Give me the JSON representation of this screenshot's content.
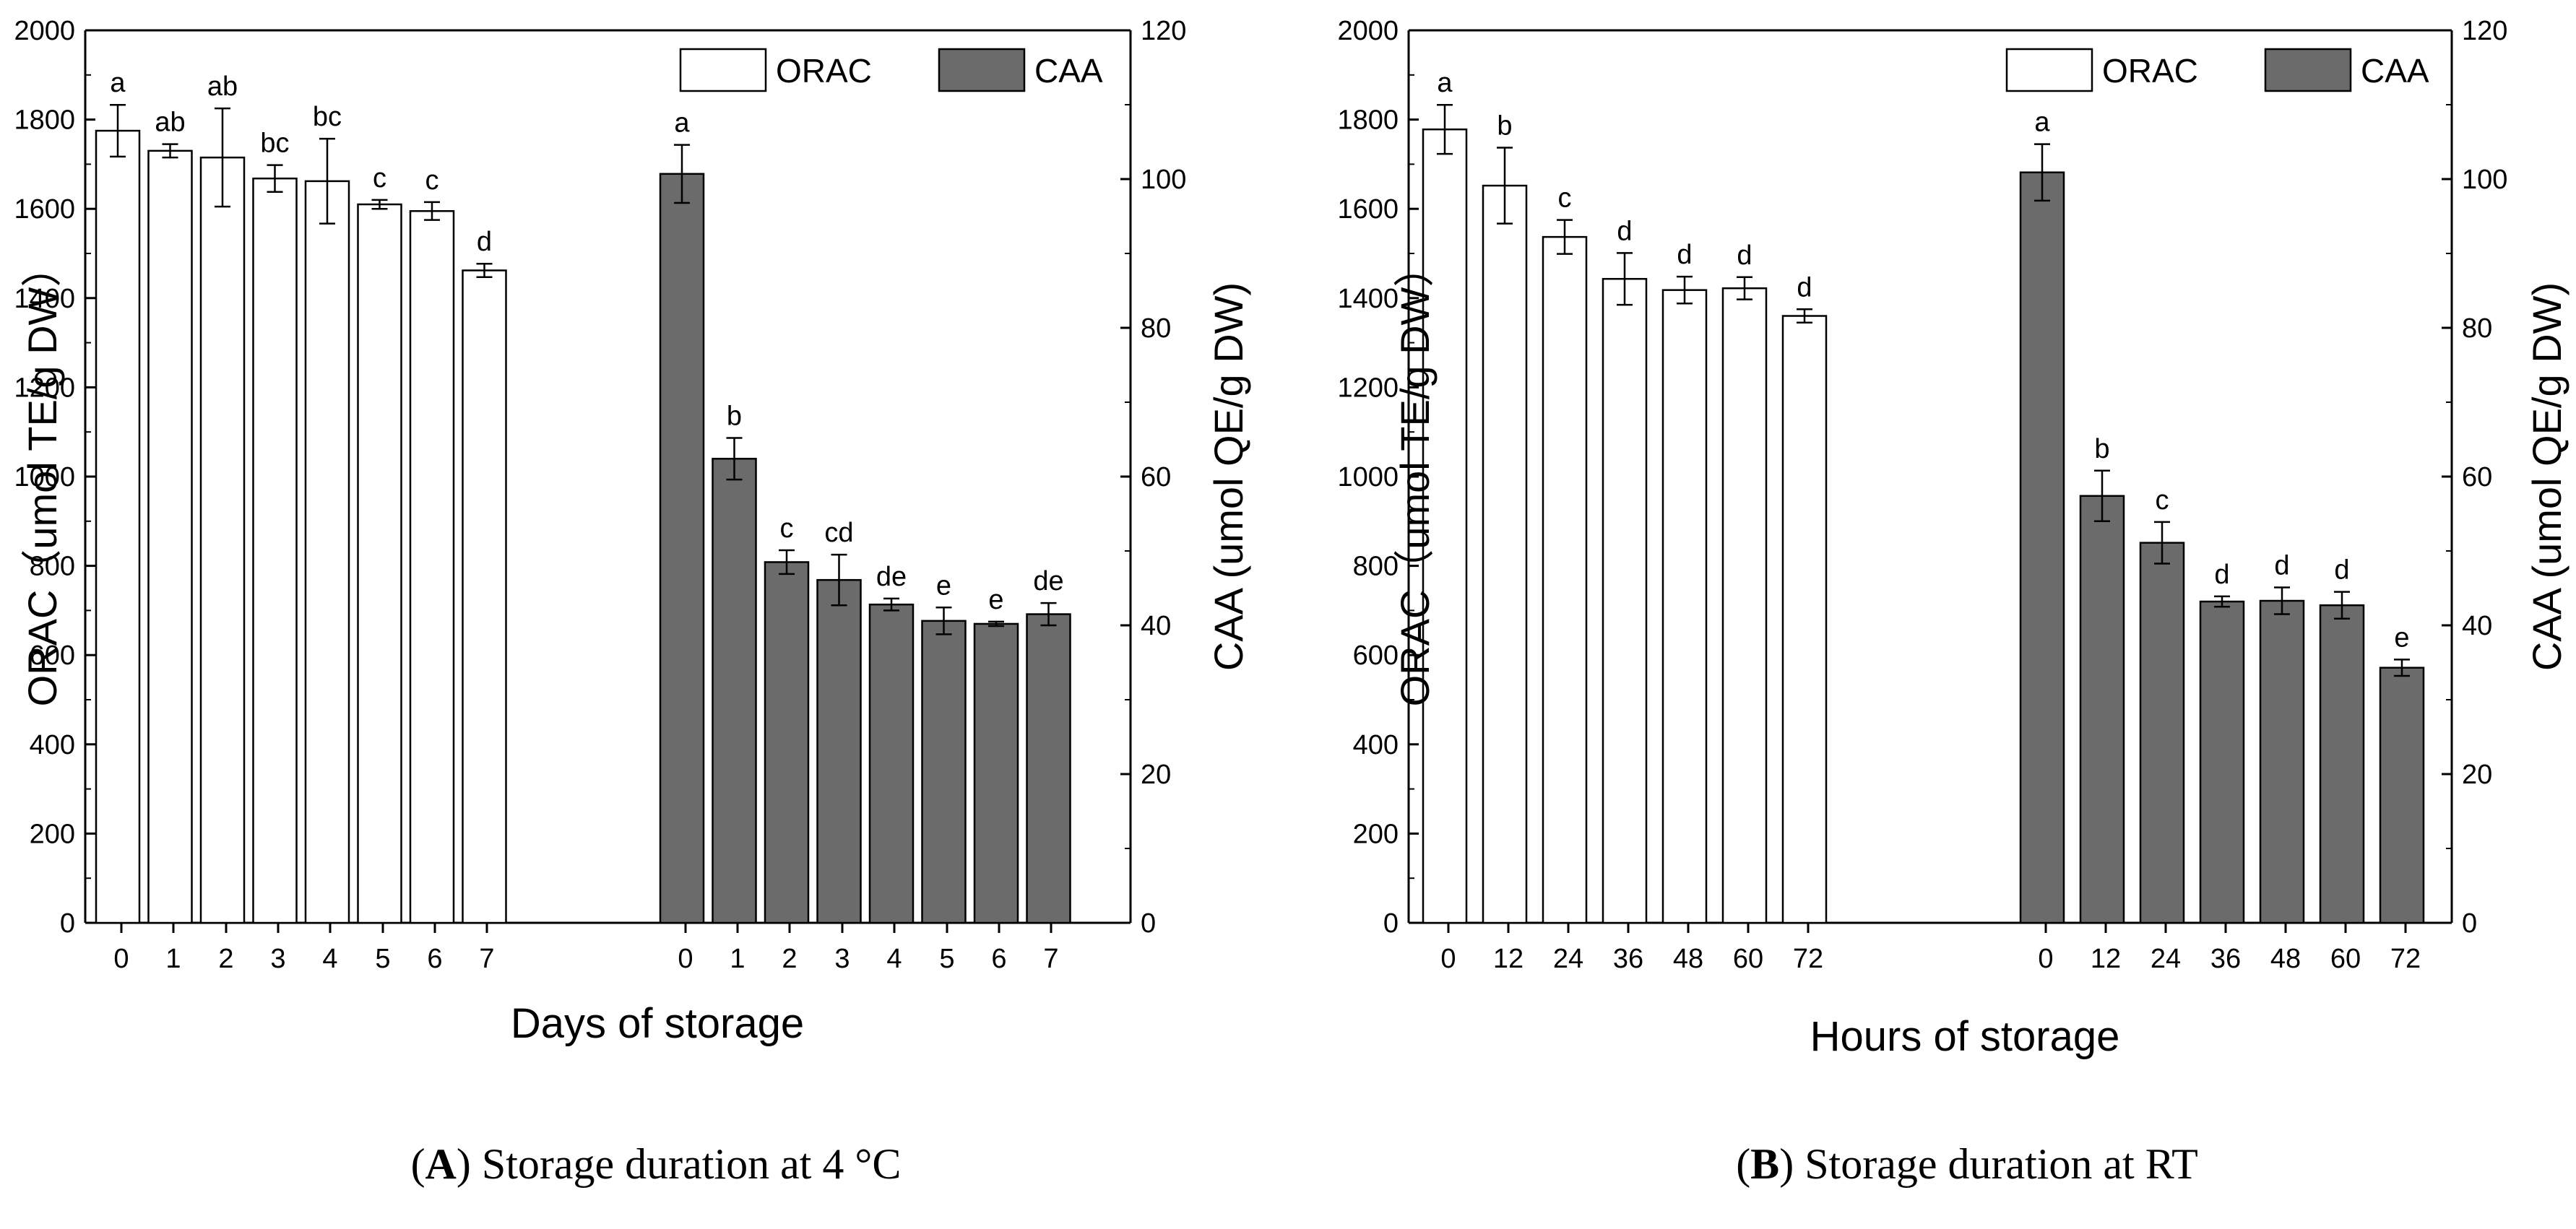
{
  "chart_data": [
    {
      "type": "bar",
      "panel": "A",
      "xlabel": "Days of storage",
      "y_left_label": "ORAC（umol TE/g DW）",
      "y_right_label": "CAA (umol QE/g DW)",
      "y_left_range": [
        0,
        2000
      ],
      "y_right_range": [
        0,
        120
      ],
      "y_left_ticks": [
        "0",
        "200",
        "400",
        "600",
        "800",
        "1000",
        "1200",
        "1400",
        "1600",
        "1800",
        "2000"
      ],
      "y_right_ticks": [
        "0",
        "20",
        "40",
        "60",
        "80",
        "100",
        "120"
      ],
      "categories": [
        "0",
        "1",
        "2",
        "3",
        "4",
        "5",
        "6",
        "7"
      ],
      "legend": [
        "ORAC",
        "CAA"
      ],
      "series": [
        {
          "name": "ORAC",
          "axis": "left",
          "values": [
            1775,
            1730,
            1715,
            1668,
            1662,
            1610,
            1595,
            1462
          ],
          "errors": [
            58,
            15,
            110,
            30,
            95,
            10,
            20,
            15
          ],
          "labels": [
            "a",
            "ab",
            "ab",
            "bc",
            "bc",
            "c",
            "c",
            "d"
          ]
        },
        {
          "name": "CAA",
          "axis": "right",
          "values": [
            100.7,
            62.4,
            48.5,
            46.1,
            42.8,
            40.6,
            40.2,
            41.5
          ],
          "errors": [
            3.9,
            2.8,
            1.6,
            3.4,
            0.8,
            1.8,
            0.3,
            1.5
          ],
          "labels": [
            "a",
            "b",
            "c",
            "cd",
            "de",
            "e",
            "e",
            "de"
          ]
        }
      ],
      "caption_letter": "A",
      "caption_text": " Storage duration at 4 °C"
    },
    {
      "type": "bar",
      "panel": "B",
      "xlabel": "Hours of storage",
      "y_left_label": "ORAC（umol TE/g DW）",
      "y_right_label": "CAA (umol QE/g DW)",
      "y_left_range": [
        0,
        2000
      ],
      "y_right_range": [
        0,
        120
      ],
      "y_left_ticks": [
        "0",
        "200",
        "400",
        "600",
        "800",
        "1000",
        "1200",
        "1400",
        "1600",
        "1800",
        "2000"
      ],
      "y_right_ticks": [
        "0",
        "20",
        "40",
        "60",
        "80",
        "100",
        "120"
      ],
      "categories": [
        "0",
        "12",
        "24",
        "36",
        "48",
        "60",
        "72"
      ],
      "legend": [
        "ORAC",
        "CAA"
      ],
      "series": [
        {
          "name": "ORAC",
          "axis": "left",
          "values": [
            1778,
            1652,
            1537,
            1443,
            1418,
            1422,
            1360
          ],
          "errors": [
            55,
            85,
            38,
            58,
            30,
            25,
            15
          ],
          "labels": [
            "a",
            "b",
            "c",
            "d",
            "d",
            "d",
            "d"
          ]
        },
        {
          "name": "CAA",
          "axis": "right",
          "values": [
            100.9,
            57.4,
            51.1,
            43.2,
            43.3,
            42.7,
            34.3
          ],
          "errors": [
            3.8,
            3.4,
            2.8,
            0.7,
            1.8,
            1.8,
            1.1
          ],
          "labels": [
            "a",
            "b",
            "c",
            "d",
            "d",
            "d",
            "e"
          ]
        }
      ],
      "caption_letter": "B",
      "caption_text": " Storage duration at RT"
    }
  ]
}
